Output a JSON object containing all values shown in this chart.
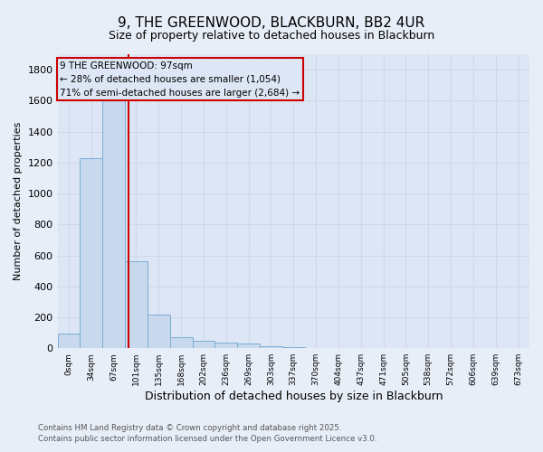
{
  "title_line1": "9, THE GREENWOOD, BLACKBURN, BB2 4UR",
  "title_line2": "Size of property relative to detached houses in Blackburn",
  "xlabel": "Distribution of detached houses by size in Blackburn",
  "ylabel": "Number of detached properties",
  "categories": [
    "0sqm",
    "34sqm",
    "67sqm",
    "101sqm",
    "135sqm",
    "168sqm",
    "202sqm",
    "236sqm",
    "269sqm",
    "303sqm",
    "337sqm",
    "370sqm",
    "404sqm",
    "437sqm",
    "471sqm",
    "505sqm",
    "538sqm",
    "572sqm",
    "606sqm",
    "639sqm",
    "673sqm"
  ],
  "values": [
    95,
    1230,
    1620,
    560,
    215,
    70,
    48,
    38,
    28,
    10,
    8,
    0,
    0,
    0,
    0,
    0,
    0,
    0,
    0,
    0,
    0
  ],
  "bar_color": "#c8d9ee",
  "bar_edge_color": "#7aadd4",
  "background_color": "#e8eef8",
  "grid_color": "#d0d8e8",
  "plot_bg_color": "#dde6f5",
  "vline_x": 2.65,
  "vline_color": "#cc0000",
  "annotation_text": "9 THE GREENWOOD: 97sqm\n← 28% of detached houses are smaller (1,054)\n71% of semi-detached houses are larger (2,684) →",
  "annotation_box_color": "#cc0000",
  "ylim": [
    0,
    1900
  ],
  "yticks": [
    0,
    200,
    400,
    600,
    800,
    1000,
    1200,
    1400,
    1600,
    1800
  ],
  "footer_line1": "Contains HM Land Registry data © Crown copyright and database right 2025.",
  "footer_line2": "Contains public sector information licensed under the Open Government Licence v3.0."
}
